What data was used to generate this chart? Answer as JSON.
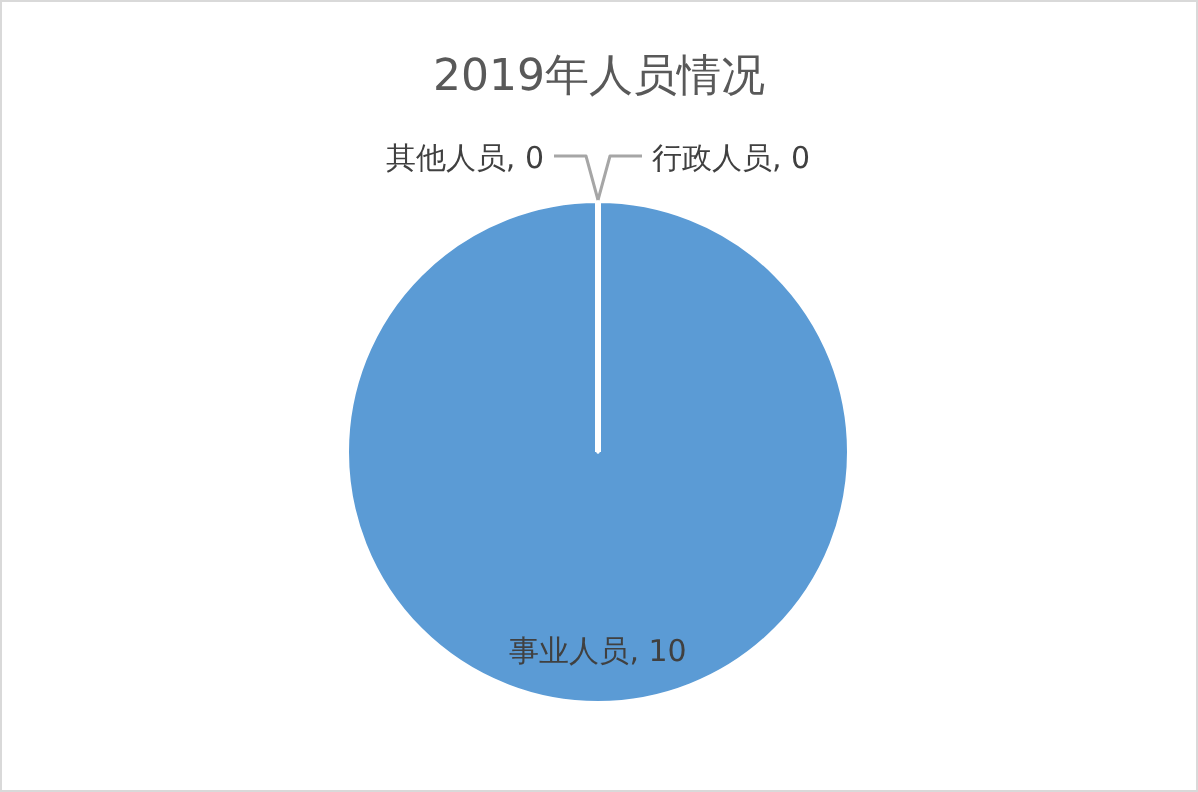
{
  "chart_data": {
    "type": "pie",
    "title": "2019年人员情况",
    "categories": [
      "事业人员",
      "行政人员",
      "其他人员"
    ],
    "values": [
      10,
      0,
      0
    ],
    "colors": [
      "#5b9bd5",
      "#ed7d31",
      "#a5a5a5"
    ],
    "value_labels": [
      ", 10",
      ", 0",
      ", 0"
    ]
  }
}
